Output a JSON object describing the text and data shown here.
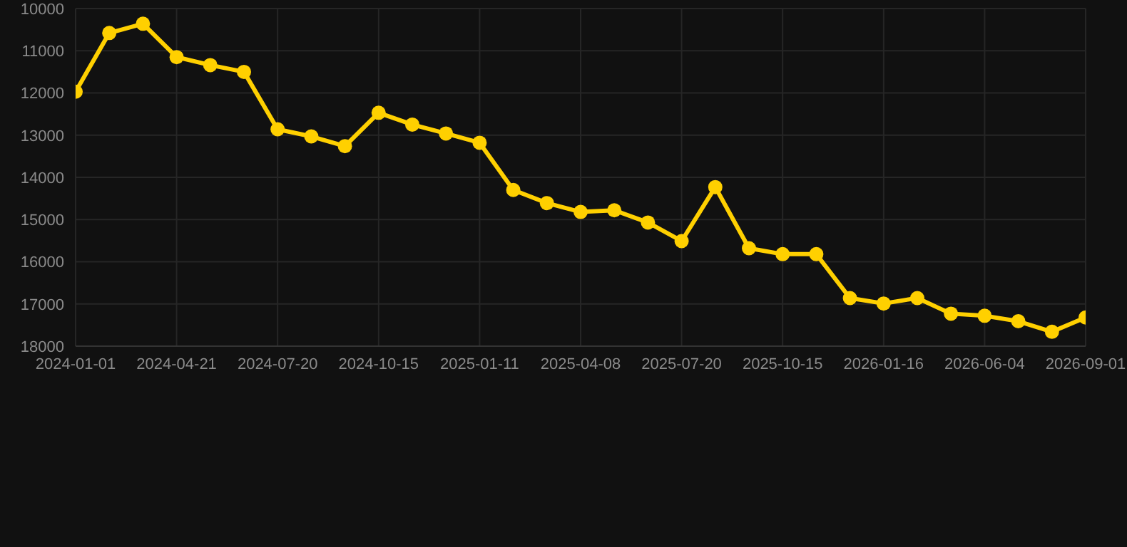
{
  "chart_data": {
    "type": "line",
    "categories": [
      "2024-01-01",
      null,
      null,
      "2024-04-21",
      null,
      null,
      "2024-07-20",
      null,
      null,
      "2024-10-15",
      null,
      null,
      "2025-01-11",
      null,
      null,
      "2025-04-08",
      null,
      null,
      "2025-07-20",
      null,
      null,
      "2025-10-15",
      null,
      null,
      "2026-01-16",
      null,
      null,
      "2026-06-04",
      null,
      null,
      "2026-09-01"
    ],
    "series": [
      {
        "color": "#ffd000",
        "values": [
          11970,
          10580,
          10360,
          11150,
          11340,
          11500,
          12860,
          13030,
          13260,
          12470,
          12750,
          12960,
          13180,
          14300,
          14610,
          14820,
          14780,
          15070,
          15510,
          14230,
          15680,
          15820,
          15820,
          16860,
          16990,
          16860,
          17230,
          17280,
          17410,
          17660,
          17320
        ]
      }
    ],
    "ylim": [
      18000,
      10000
    ],
    "yticks": [
      10000,
      11000,
      12000,
      13000,
      14000,
      15000,
      16000,
      17000,
      18000
    ],
    "grid": true,
    "marker": "circle",
    "line_style": "solid"
  }
}
